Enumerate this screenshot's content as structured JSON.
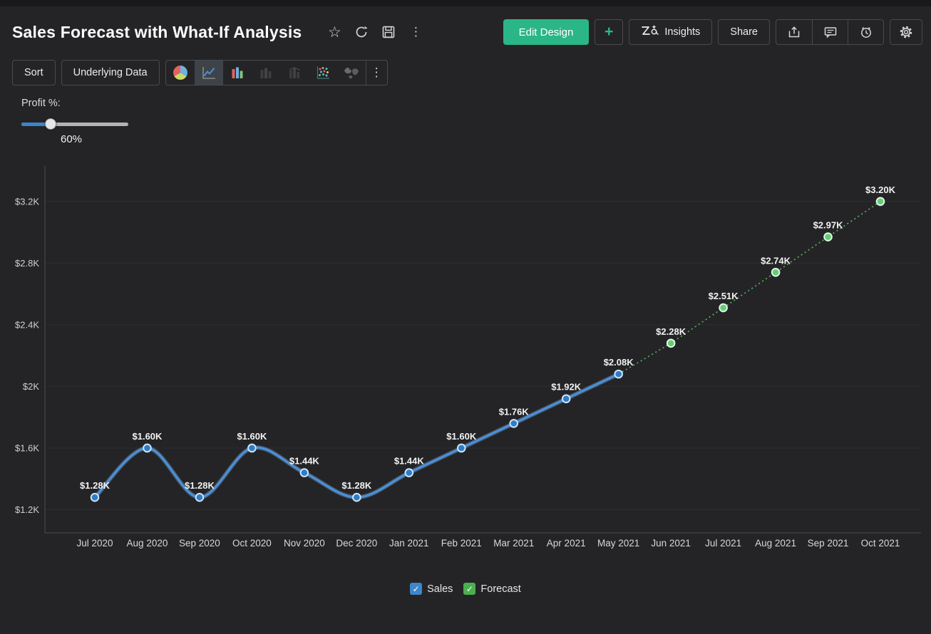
{
  "header": {
    "title": "Sales Forecast with What-If Analysis",
    "title_icons": [
      "favorite-star-icon",
      "refresh-icon",
      "save-icon",
      "more-options-icon"
    ],
    "buttons": {
      "edit_design": "Edit Design",
      "add": "+",
      "insights": "Insights",
      "share": "Share"
    },
    "icon_buttons": [
      "export-icon",
      "comments-icon",
      "alerts-icon",
      "settings-gear-icon"
    ]
  },
  "toolbar": {
    "sort": "Sort",
    "underlying_data": "Underlying Data",
    "chart_types": [
      "pie",
      "line",
      "bar",
      "stacked-bar",
      "combo",
      "scatter",
      "map"
    ],
    "selected_chart_type": "line",
    "more": "more-chart-types"
  },
  "whatif": {
    "label": "Profit %:",
    "value": "60%",
    "fill_percent": 27
  },
  "chart_data": {
    "type": "line",
    "title": "Sales Forecast with What-If Analysis",
    "x": [
      "Jul 2020",
      "Aug 2020",
      "Sep 2020",
      "Oct 2020",
      "Nov 2020",
      "Dec 2020",
      "Jan 2021",
      "Feb 2021",
      "Mar 2021",
      "Apr 2021",
      "May 2021",
      "Jun 2021",
      "Jul 2021",
      "Aug 2021",
      "Sep 2021",
      "Oct 2021"
    ],
    "ylim": [
      1050,
      3430
    ],
    "yticks": [
      1200,
      1600,
      2000,
      2400,
      2800,
      3200
    ],
    "ytick_labels": [
      "$1.2K",
      "$1.6K",
      "$2K",
      "$2.4K",
      "$2.8K",
      "$3.2K"
    ],
    "grid": true,
    "legend_position": "bottom",
    "series": [
      {
        "name": "Sales",
        "line_style": "solid-spline",
        "color": "#4a90d8",
        "halo": "#86b7e8",
        "marker_fill": "#2e7cc4",
        "marker_stroke": "#cde4f8",
        "start_index": 0,
        "values": [
          1280,
          1600,
          1280,
          1600,
          1440,
          1280,
          1440,
          1600,
          1760,
          1920,
          2080
        ],
        "point_labels": [
          "$1.28K",
          "$1.60K",
          "$1.28K",
          "$1.60K",
          "$1.44K",
          "$1.28K",
          "$1.44K",
          "$1.60K",
          "$1.76K",
          "$1.92K",
          "$2.08K"
        ]
      },
      {
        "name": "Forecast",
        "line_style": "dashed",
        "color": "#5cb860",
        "halo": "#5cb860",
        "marker_fill": "#63cd74",
        "marker_stroke": "#e2f6e4",
        "start_index": 10,
        "values": [
          2080,
          2280,
          2510,
          2740,
          2970,
          3200
        ],
        "point_labels": [
          null,
          "$2.28K",
          "$2.51K",
          "$2.74K",
          "$2.97K",
          "$3.20K"
        ]
      }
    ]
  },
  "legend": {
    "items": [
      {
        "label": "Sales",
        "color": "#3e86c9",
        "checked": true
      },
      {
        "label": "Forecast",
        "color": "#4cae50",
        "checked": true
      }
    ]
  },
  "colors": {
    "background": "#242427",
    "top_strip": "#19191b",
    "accent_green": "#2bb687",
    "sales_blue": "#4a90d8",
    "forecast_green": "#5cb860",
    "grid_line": "#2e2e31",
    "axis_line": "#4d4d50",
    "border": "#4a4a4c"
  }
}
